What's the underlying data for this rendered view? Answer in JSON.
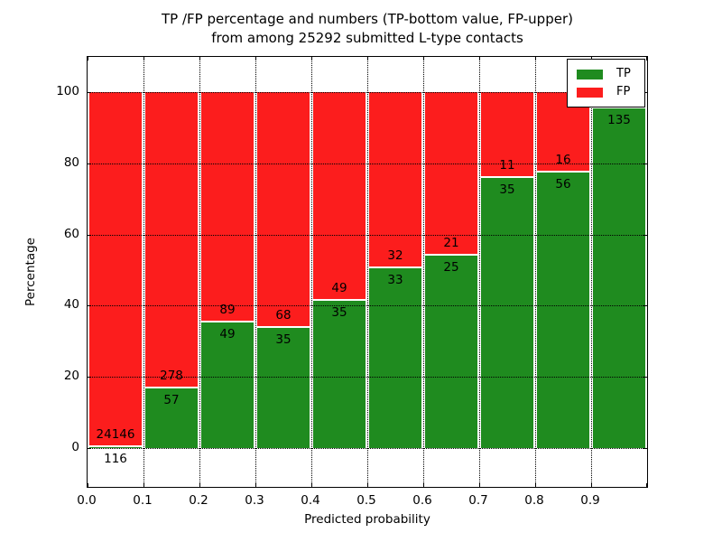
{
  "title": {
    "line1": "TP /FP percentage and numbers (TP-bottom value, FP-upper)",
    "line2": "from among 25292 submitted L-type contacts"
  },
  "axes": {
    "x_label": "Predicted probability",
    "y_label": "Percentage",
    "x_tick_labels": [
      "0.0",
      "0.1",
      "0.2",
      "0.3",
      "0.4",
      "0.5",
      "0.6",
      "0.7",
      "0.8",
      "0.9"
    ],
    "x_tick_values": [
      0.0,
      0.1,
      0.2,
      0.3,
      0.4,
      0.5,
      0.6,
      0.7,
      0.8,
      0.9
    ],
    "y_tick_labels": [
      "0",
      "20",
      "40",
      "60",
      "80",
      "100"
    ],
    "y_tick_values": [
      0,
      20,
      40,
      60,
      80,
      100
    ],
    "xlim": [
      0.0,
      1.0
    ],
    "ylim": [
      -11,
      110
    ]
  },
  "colors": {
    "tp": "#1f8b1f",
    "fp": "#fc1d1d",
    "grid": "#000000",
    "background": "#ffffff"
  },
  "legend": {
    "position": "upper right",
    "entries": [
      {
        "label": "TP",
        "color": "#1f8b1f"
      },
      {
        "label": "FP",
        "color": "#fc1d1d"
      }
    ]
  },
  "chart_data": {
    "type": "bar",
    "stacked": true,
    "orientation": "vertical",
    "title": "TP /FP percentage and numbers (TP-bottom value, FP-upper) from among 25292 submitted L-type contacts",
    "xlabel": "Predicted probability",
    "ylabel": "Percentage",
    "xlim": [
      0.0,
      1.0
    ],
    "ylim": [
      -11,
      110
    ],
    "grid": true,
    "bin_width": 0.1,
    "total_submitted": 25292,
    "bins": [
      {
        "x_start": 0.0,
        "x_end": 0.1,
        "tp_count": 116,
        "fp_count": 24146,
        "tp_pct": 0.5,
        "fp_pct": 99.5,
        "tp_label": "116",
        "fp_label": "24146"
      },
      {
        "x_start": 0.1,
        "x_end": 0.2,
        "tp_count": 57,
        "fp_count": 278,
        "tp_pct": 17.0,
        "fp_pct": 83.0,
        "tp_label": "57",
        "fp_label": "278"
      },
      {
        "x_start": 0.2,
        "x_end": 0.3,
        "tp_count": 49,
        "fp_count": 89,
        "tp_pct": 35.5,
        "fp_pct": 64.5,
        "tp_label": "49",
        "fp_label": "89"
      },
      {
        "x_start": 0.3,
        "x_end": 0.4,
        "tp_count": 35,
        "fp_count": 68,
        "tp_pct": 34.0,
        "fp_pct": 66.0,
        "tp_label": "35",
        "fp_label": "68"
      },
      {
        "x_start": 0.4,
        "x_end": 0.5,
        "tp_count": 35,
        "fp_count": 49,
        "tp_pct": 41.7,
        "fp_pct": 58.3,
        "tp_label": "35",
        "fp_label": "49"
      },
      {
        "x_start": 0.5,
        "x_end": 0.6,
        "tp_count": 33,
        "fp_count": 32,
        "tp_pct": 50.8,
        "fp_pct": 49.2,
        "tp_label": "33",
        "fp_label": "32"
      },
      {
        "x_start": 0.6,
        "x_end": 0.7,
        "tp_count": 25,
        "fp_count": 21,
        "tp_pct": 54.3,
        "fp_pct": 45.7,
        "tp_label": "25",
        "fp_label": "21"
      },
      {
        "x_start": 0.7,
        "x_end": 0.8,
        "tp_count": 35,
        "fp_count": 11,
        "tp_pct": 76.1,
        "fp_pct": 23.9,
        "tp_label": "35",
        "fp_label": "11"
      },
      {
        "x_start": 0.8,
        "x_end": 0.9,
        "tp_count": 56,
        "fp_count": 16,
        "tp_pct": 77.8,
        "fp_pct": 22.2,
        "tp_label": "56",
        "fp_label": "16"
      },
      {
        "x_start": 0.9,
        "x_end": 1.0,
        "tp_count": 135,
        "fp_count": null,
        "tp_pct": 95.7,
        "fp_pct": 4.3,
        "tp_label": "135",
        "fp_label": ""
      }
    ],
    "series": [
      {
        "name": "TP",
        "color": "#1f8b1f",
        "values_pct": [
          0.5,
          17.0,
          35.5,
          34.0,
          41.7,
          50.8,
          54.3,
          76.1,
          77.8,
          95.7
        ]
      },
      {
        "name": "FP",
        "color": "#fc1d1d",
        "values_pct": [
          99.5,
          83.0,
          64.5,
          66.0,
          58.3,
          49.2,
          45.7,
          23.9,
          22.2,
          4.3
        ]
      }
    ]
  }
}
